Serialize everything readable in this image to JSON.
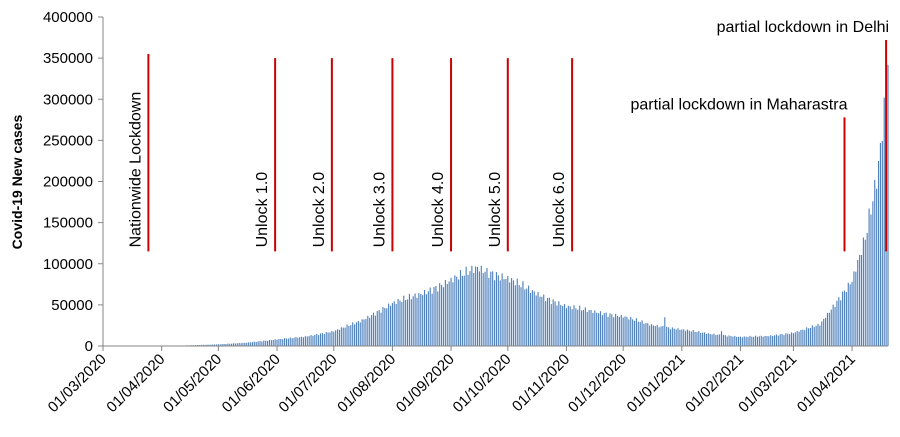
{
  "chart_data": {
    "type": "bar",
    "ylabel": "Covid-19 New cases",
    "ylim": [
      0,
      400000
    ],
    "yticks": [
      0,
      50000,
      100000,
      150000,
      200000,
      250000,
      300000,
      350000,
      400000
    ],
    "xticks": [
      "01/03/2020",
      "01/04/2020",
      "01/05/2020",
      "01/06/2020",
      "01/07/2020",
      "01/08/2020",
      "01/09/2020",
      "01/10/2020",
      "01/11/2020",
      "01/12/2020",
      "01/01/2021",
      "01/02/2021",
      "01/03/2021",
      "01/04/2021"
    ],
    "x_range": [
      "2020-03-01",
      "2021-04-20"
    ],
    "grid": false,
    "color": "#4f81bd",
    "marker_color": "#cc0000",
    "daily_new_cases": {
      "start_date": "2020-03-01",
      "end_date": "2021-04-20",
      "anchors": [
        [
          "2020-03-01",
          0
        ],
        [
          "2020-03-31",
          0
        ],
        [
          "2020-04-15",
          800
        ],
        [
          "2020-05-01",
          2000
        ],
        [
          "2020-05-15",
          3800
        ],
        [
          "2020-06-01",
          8000
        ],
        [
          "2020-06-15",
          11000
        ],
        [
          "2020-07-01",
          18000
        ],
        [
          "2020-07-15",
          30000
        ],
        [
          "2020-08-01",
          52000
        ],
        [
          "2020-08-15",
          62000
        ],
        [
          "2020-09-01",
          80000
        ],
        [
          "2020-09-15",
          95000
        ],
        [
          "2020-10-01",
          82000
        ],
        [
          "2020-10-15",
          65000
        ],
        [
          "2020-11-01",
          48000
        ],
        [
          "2020-11-15",
          42000
        ],
        [
          "2020-12-01",
          36000
        ],
        [
          "2020-12-15",
          26000
        ],
        [
          "2021-01-01",
          20000
        ],
        [
          "2021-01-15",
          15000
        ],
        [
          "2021-02-01",
          11000
        ],
        [
          "2021-02-15",
          12000
        ],
        [
          "2021-03-01",
          16000
        ],
        [
          "2021-03-15",
          26000
        ],
        [
          "2021-04-01",
          80000
        ],
        [
          "2021-04-08",
          130000
        ],
        [
          "2021-04-14",
          200000
        ],
        [
          "2021-04-17",
          260000
        ],
        [
          "2021-04-20",
          350000
        ]
      ],
      "spikes": [
        [
          "2020-12-23",
          35000
        ],
        [
          "2021-01-22",
          18000
        ]
      ]
    },
    "annotations": [
      {
        "label": "Nationwide Lockdown",
        "date": "2020-03-25",
        "y_top": 355000,
        "y_bottom": 115000,
        "text_orientation": "vertical"
      },
      {
        "label": "Unlock 1.0",
        "date": "2020-05-31",
        "y_top": 350000,
        "y_bottom": 115000,
        "text_orientation": "vertical"
      },
      {
        "label": "Unlock 2.0",
        "date": "2020-06-30",
        "y_top": 350000,
        "y_bottom": 115000,
        "text_orientation": "vertical"
      },
      {
        "label": "Unlock 3.0",
        "date": "2020-08-01",
        "y_top": 350000,
        "y_bottom": 115000,
        "text_orientation": "vertical"
      },
      {
        "label": "Unlock 4.0",
        "date": "2020-09-01",
        "y_top": 350000,
        "y_bottom": 115000,
        "text_orientation": "vertical"
      },
      {
        "label": "Unlock 5.0",
        "date": "2020-10-01",
        "y_top": 350000,
        "y_bottom": 115000,
        "text_orientation": "vertical"
      },
      {
        "label": "Unlock 6.0",
        "date": "2020-11-04",
        "y_top": 350000,
        "y_bottom": 115000,
        "text_orientation": "vertical"
      },
      {
        "label": "partial lockdown in Maharastra",
        "date": "2021-03-28",
        "y_top": 278000,
        "y_bottom": 115000,
        "text_orientation": "horizontal"
      },
      {
        "label": "partial lockdown in Delhi",
        "date": "2021-04-19",
        "y_top": 372000,
        "y_bottom": 115000,
        "text_orientation": "horizontal"
      }
    ]
  }
}
